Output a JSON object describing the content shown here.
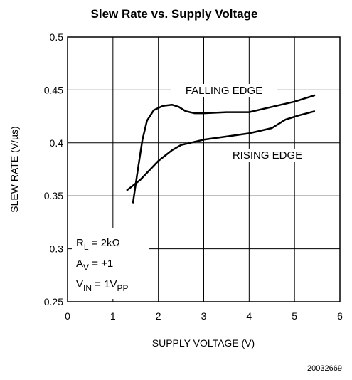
{
  "chart_data": {
    "type": "line",
    "title": "Slew Rate vs. Supply Voltage",
    "xlabel": "SUPPLY VOLTAGE (V)",
    "ylabel": "SLEW RATE (V/µs)",
    "footnote": "20032669",
    "xlim": [
      0,
      6
    ],
    "xticks": [
      0,
      1,
      2,
      3,
      4,
      5,
      6
    ],
    "ylim": [
      0.25,
      0.5
    ],
    "yticks": [
      0.25,
      0.3,
      0.35,
      0.4,
      0.45,
      0.5
    ],
    "grid": true,
    "series": [
      {
        "name": "FALLING EDGE",
        "color": "#000000",
        "x": [
          1.44,
          1.55,
          1.65,
          1.75,
          1.9,
          2.1,
          2.3,
          2.45,
          2.6,
          2.8,
          3.0,
          3.5,
          4.0,
          4.5,
          5.0,
          5.45
        ],
        "values": [
          0.343,
          0.375,
          0.403,
          0.421,
          0.431,
          0.435,
          0.436,
          0.434,
          0.43,
          0.428,
          0.428,
          0.429,
          0.429,
          0.434,
          0.439,
          0.445
        ]
      },
      {
        "name": "RISING EDGE",
        "color": "#000000",
        "x": [
          1.3,
          1.6,
          2.0,
          2.3,
          2.5,
          2.7,
          3.0,
          3.5,
          4.0,
          4.5,
          4.8,
          5.1,
          5.45
        ],
        "values": [
          0.355,
          0.365,
          0.383,
          0.393,
          0.398,
          0.4,
          0.403,
          0.406,
          0.409,
          0.414,
          0.422,
          0.426,
          0.43
        ]
      }
    ],
    "annotations": [
      [
        "R",
        "L",
        " = 2kΩ"
      ],
      [
        "A",
        "V",
        " = +1"
      ],
      [
        "V",
        "IN",
        " = 1V",
        "PP"
      ]
    ]
  }
}
